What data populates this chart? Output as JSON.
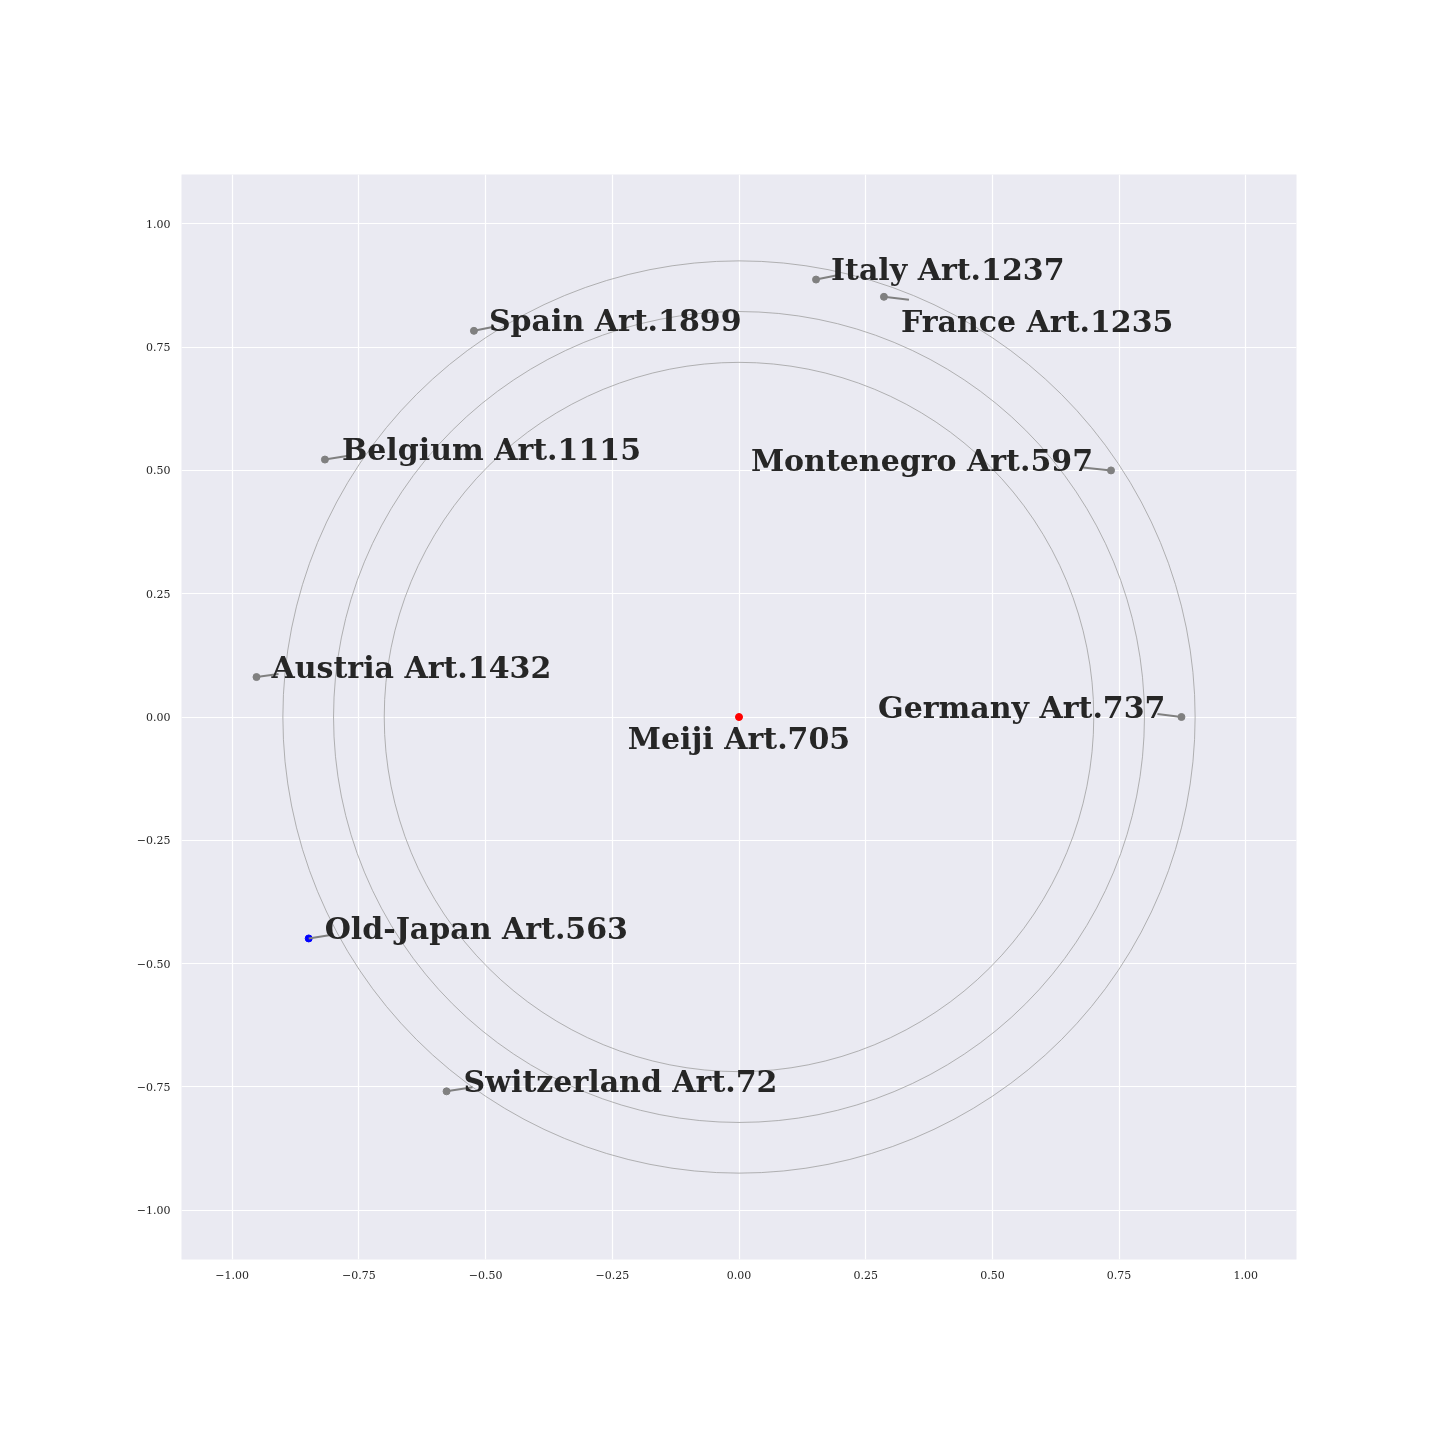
{
  "chart_data": {
    "type": "scatter",
    "xlim": [
      -1.1,
      1.1
    ],
    "ylim": [
      -1.1,
      1.1
    ],
    "xticks": [
      {
        "value": -1.0,
        "label": "−1.00"
      },
      {
        "value": -0.75,
        "label": "−0.75"
      },
      {
        "value": -0.5,
        "label": "−0.50"
      },
      {
        "value": -0.25,
        "label": "−0.25"
      },
      {
        "value": 0,
        "label": "0.00"
      },
      {
        "value": 0.25,
        "label": "0.25"
      },
      {
        "value": 0.5,
        "label": "0.50"
      },
      {
        "value": 0.75,
        "label": "0.75"
      },
      {
        "value": 1.0,
        "label": "1.00"
      }
    ],
    "yticks": [
      {
        "value": -1.0,
        "label": "−1.00"
      },
      {
        "value": -0.75,
        "label": "−0.75"
      },
      {
        "value": -0.5,
        "label": "−0.50"
      },
      {
        "value": -0.25,
        "label": "−0.25"
      },
      {
        "value": 0,
        "label": "0.00"
      },
      {
        "value": 0.25,
        "label": "0.25"
      },
      {
        "value": 0.5,
        "label": "0.50"
      },
      {
        "value": 0.75,
        "label": "0.75"
      },
      {
        "value": 1.0,
        "label": "1.00"
      }
    ],
    "grid": true,
    "marker": "circle",
    "x": [
      0,
      0.152,
      0.286,
      -0.523,
      -0.817,
      0.734,
      -0.952,
      0.873,
      -0.849,
      -0.577
    ],
    "values": [
      0,
      0.887,
      0.852,
      0.783,
      0.522,
      0.5,
      0.081,
      0,
      -0.449,
      -0.759
    ],
    "colors": [
      "#ff0000",
      "#808080",
      "#808080",
      "#808080",
      "#808080",
      "#808080",
      "#808080",
      "#808080",
      "#0000ff",
      "#808080"
    ],
    "annotations": [
      {
        "text": "Meiji Art.705",
        "x": 0,
        "y": 0
      },
      {
        "text": "Italy Art.1237",
        "x": 0.152,
        "y": 0.887
      },
      {
        "text": "France Art.1235",
        "x": 0.286,
        "y": 0.852
      },
      {
        "text": "Spain Art.1899",
        "x": -0.523,
        "y": 0.783
      },
      {
        "text": "Belgium Art.1115",
        "x": -0.817,
        "y": 0.522
      },
      {
        "text": "Montenegro Art.597",
        "x": 0.734,
        "y": 0.5
      },
      {
        "text": "Austria Art.1432",
        "x": -0.952,
        "y": 0.081
      },
      {
        "text": "Germany Art.737",
        "x": 0.873,
        "y": 0
      },
      {
        "text": "Old-Japan Art.563",
        "x": -0.849,
        "y": -0.449
      },
      {
        "text": "Switzerland Art.72",
        "x": -0.577,
        "y": -0.759
      }
    ]
  }
}
